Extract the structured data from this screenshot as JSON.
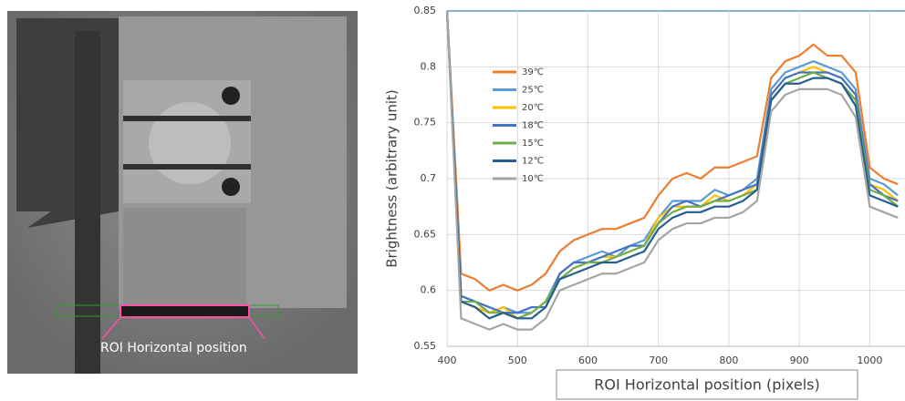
{
  "image": {
    "annotation": "ROI  Horizontal position"
  },
  "chart_data": {
    "type": "line",
    "x_label": "ROI  Horizontal position (pixels)",
    "y_label": "Brightness (arbitrary unit)",
    "x": [
      400,
      420,
      440,
      460,
      480,
      500,
      520,
      540,
      560,
      580,
      600,
      620,
      640,
      660,
      680,
      700,
      720,
      740,
      760,
      780,
      800,
      820,
      840,
      860,
      880,
      900,
      920,
      940,
      960,
      980,
      1000,
      1020,
      1040
    ],
    "xlim": [
      400,
      1050
    ],
    "xticks": [
      400,
      500,
      600,
      700,
      800,
      900,
      1000
    ],
    "ylim": [
      0.55,
      0.85
    ],
    "yticks": [
      0.55,
      0.6,
      0.65,
      0.7,
      0.75,
      0.8,
      0.85
    ],
    "grid": true,
    "legend": "upper-left",
    "series": [
      {
        "name": "39℃",
        "color": "#ed7d31",
        "values": [
          0.85,
          0.615,
          0.61,
          0.6,
          0.605,
          0.6,
          0.605,
          0.615,
          0.635,
          0.645,
          0.65,
          0.655,
          0.655,
          0.66,
          0.665,
          0.685,
          0.7,
          0.705,
          0.7,
          0.71,
          0.71,
          0.715,
          0.72,
          0.79,
          0.805,
          0.81,
          0.82,
          0.81,
          0.81,
          0.795,
          0.71,
          0.7,
          0.695
        ]
      },
      {
        "name": "25℃",
        "color": "#5b9bd5",
        "values": [
          0.85,
          0.595,
          0.59,
          0.58,
          0.585,
          0.58,
          0.58,
          0.59,
          0.615,
          0.625,
          0.63,
          0.635,
          0.63,
          0.64,
          0.645,
          0.665,
          0.68,
          0.68,
          0.68,
          0.69,
          0.685,
          0.69,
          0.7,
          0.78,
          0.795,
          0.8,
          0.805,
          0.8,
          0.795,
          0.78,
          0.7,
          0.695,
          0.685
        ]
      },
      {
        "name": "20℃",
        "color": "#ffc000",
        "values": [
          0.85,
          0.59,
          0.585,
          0.58,
          0.585,
          0.575,
          0.58,
          0.59,
          0.61,
          0.62,
          0.625,
          0.63,
          0.63,
          0.635,
          0.64,
          0.665,
          0.675,
          0.675,
          0.675,
          0.685,
          0.68,
          0.685,
          0.695,
          0.775,
          0.79,
          0.795,
          0.8,
          0.795,
          0.79,
          0.775,
          0.695,
          0.69,
          0.68
        ]
      },
      {
        "name": "18℃",
        "color": "#4472c4",
        "values": [
          0.85,
          0.595,
          0.59,
          0.585,
          0.58,
          0.58,
          0.585,
          0.585,
          0.615,
          0.625,
          0.625,
          0.63,
          0.635,
          0.64,
          0.64,
          0.66,
          0.675,
          0.68,
          0.675,
          0.68,
          0.685,
          0.69,
          0.695,
          0.775,
          0.79,
          0.795,
          0.795,
          0.795,
          0.79,
          0.775,
          0.695,
          0.685,
          0.68
        ]
      },
      {
        "name": "15℃",
        "color": "#70ad47",
        "values": [
          0.85,
          0.59,
          0.59,
          0.58,
          0.58,
          0.575,
          0.58,
          0.59,
          0.61,
          0.62,
          0.625,
          0.625,
          0.63,
          0.635,
          0.64,
          0.66,
          0.67,
          0.675,
          0.675,
          0.68,
          0.68,
          0.685,
          0.69,
          0.77,
          0.785,
          0.79,
          0.795,
          0.79,
          0.785,
          0.77,
          0.69,
          0.685,
          0.675
        ]
      },
      {
        "name": "12℃",
        "color": "#255e91",
        "values": [
          0.85,
          0.59,
          0.585,
          0.575,
          0.58,
          0.575,
          0.575,
          0.585,
          0.61,
          0.615,
          0.62,
          0.625,
          0.625,
          0.63,
          0.635,
          0.655,
          0.665,
          0.67,
          0.67,
          0.675,
          0.675,
          0.68,
          0.69,
          0.77,
          0.785,
          0.785,
          0.79,
          0.79,
          0.785,
          0.765,
          0.685,
          0.68,
          0.675
        ]
      },
      {
        "name": "10℃",
        "color": "#a5a5a5",
        "values": [
          0.85,
          0.575,
          0.57,
          0.565,
          0.57,
          0.565,
          0.565,
          0.575,
          0.6,
          0.605,
          0.61,
          0.615,
          0.615,
          0.62,
          0.625,
          0.645,
          0.655,
          0.66,
          0.66,
          0.665,
          0.665,
          0.67,
          0.68,
          0.76,
          0.775,
          0.78,
          0.78,
          0.78,
          0.775,
          0.755,
          0.675,
          0.67,
          0.665
        ]
      }
    ]
  }
}
